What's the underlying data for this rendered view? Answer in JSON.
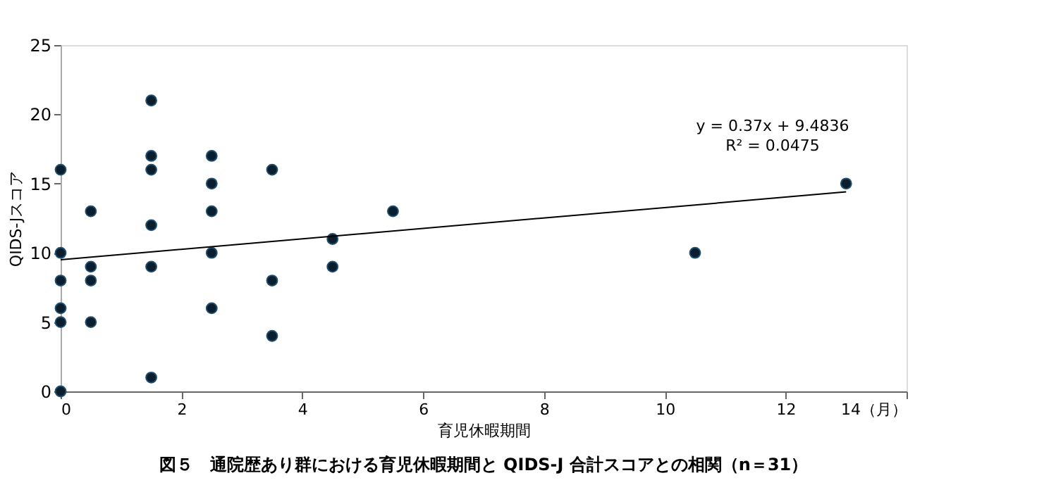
{
  "chart_data": {
    "type": "scatter",
    "title": "図５　通院歴あり群における育児休暇期間と QIDS-J 合計スコアとの相関（n＝31）",
    "xlabel": "育児休暇期間",
    "ylabel": "QIDS-Jスコア",
    "xlim": [
      0,
      14
    ],
    "xticks": [
      0,
      2,
      4,
      6,
      8,
      10,
      12,
      {
        "value": 14,
        "label": "14（月）"
      }
    ],
    "ylim": [
      0,
      25
    ],
    "yticks": [
      0,
      5,
      10,
      15,
      20,
      25
    ],
    "series": [
      {
        "color": "#0b1e2e",
        "marker": "circle",
        "x": [
          0,
          0,
          0,
          0,
          0,
          0,
          0.5,
          0.5,
          0.5,
          0.5,
          1.5,
          1.5,
          1.5,
          1.5,
          1.5,
          1.5,
          2.5,
          2.5,
          2.5,
          2.5,
          2.5,
          3.5,
          3.5,
          3.5,
          4.5,
          4.5,
          5.5,
          10.5,
          13
        ],
        "values": [
          16,
          10,
          8,
          6,
          5,
          0,
          13,
          9,
          8,
          5,
          21,
          17,
          16,
          12,
          9,
          1,
          17,
          15,
          13,
          10,
          6,
          16,
          8,
          4,
          11,
          9,
          13,
          10,
          15
        ]
      },
      {
        "type": "line",
        "color": "#000000",
        "line_style": "solid",
        "marker": "none",
        "x": [
          0,
          13
        ],
        "values": [
          9.5,
          14.4
        ]
      }
    ],
    "annotations": [
      "y = 0.37x + 9.4836",
      "R² = 0.0475"
    ]
  }
}
